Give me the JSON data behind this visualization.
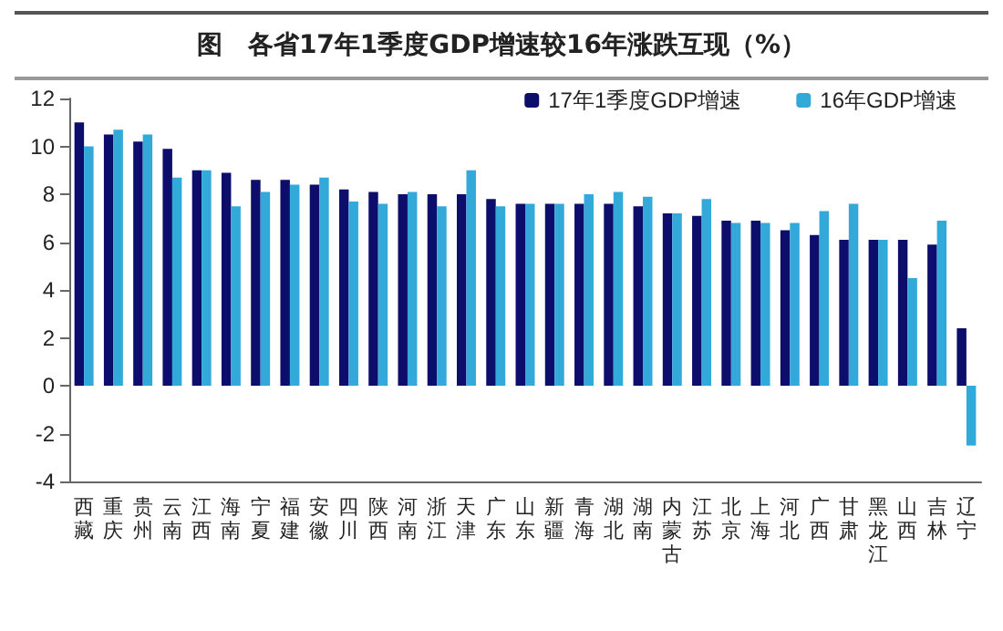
{
  "chart_data": {
    "type": "bar",
    "title": "图　各省17年1季度GDP增速较16年涨跌互现（%）",
    "categories": [
      "西藏",
      "重庆",
      "贵州",
      "云南",
      "江西",
      "海南",
      "宁夏",
      "福建",
      "安徽",
      "四川",
      "陕西",
      "河南",
      "浙江",
      "天津",
      "广东",
      "山东",
      "新疆",
      "青海",
      "湖北",
      "湖南",
      "内蒙古",
      "江苏",
      "北京",
      "上海",
      "河北",
      "广西",
      "甘肃",
      "黑龙江",
      "山西",
      "吉林",
      "辽宁"
    ],
    "series": [
      {
        "name": "17年1季度GDP增速",
        "color": "#0d0d6b",
        "values": [
          11.0,
          10.5,
          10.2,
          9.9,
          9.0,
          8.9,
          8.6,
          8.6,
          8.4,
          8.2,
          8.1,
          8.0,
          8.0,
          8.0,
          7.8,
          7.6,
          7.6,
          7.6,
          7.6,
          7.5,
          7.2,
          7.1,
          6.9,
          6.9,
          6.5,
          6.3,
          6.1,
          6.1,
          6.1,
          5.9,
          2.4
        ]
      },
      {
        "name": "16年GDP增速",
        "color": "#33a9d9",
        "values": [
          10.0,
          10.7,
          10.5,
          8.7,
          9.0,
          7.5,
          8.1,
          8.4,
          8.7,
          7.7,
          7.6,
          8.1,
          7.5,
          9.0,
          7.5,
          7.6,
          7.6,
          8.0,
          8.1,
          7.9,
          7.2,
          7.8,
          6.8,
          6.8,
          6.8,
          7.3,
          7.6,
          6.1,
          4.5,
          6.9,
          -2.5
        ]
      }
    ],
    "ylim": [
      -4,
      12
    ],
    "yticks": [
      -4,
      -2,
      0,
      2,
      4,
      6,
      8,
      10,
      12
    ],
    "grid": false,
    "legend": "top right"
  }
}
